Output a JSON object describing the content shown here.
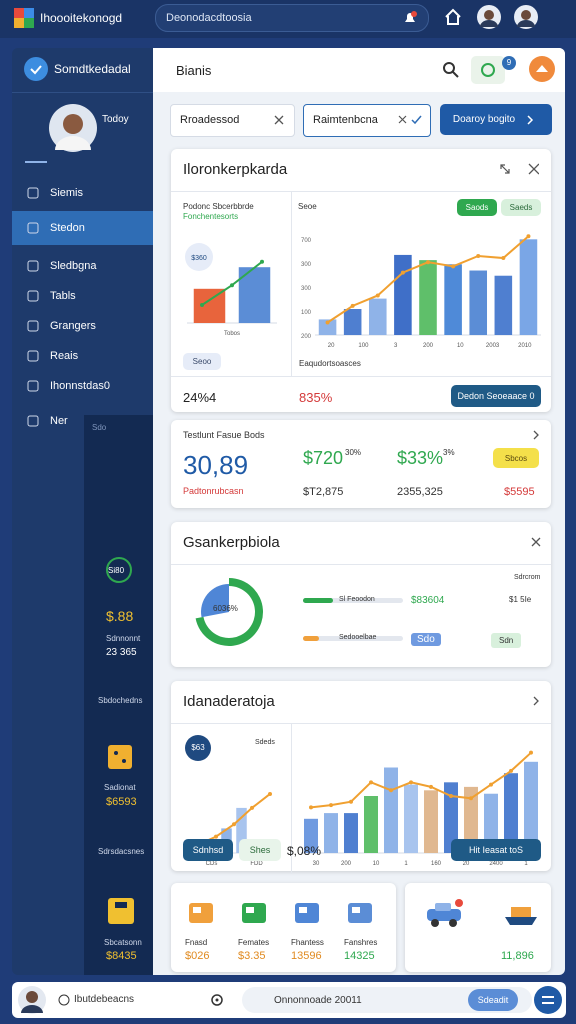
{
  "top_bar": {
    "app_title": "Ihoooitekonogd",
    "search": "Deonodacdtoosia"
  },
  "sidebar": {
    "title": "Somdtkedadal",
    "user_name": "Todoy",
    "nav": [
      "Siemis",
      "Stedon",
      "Sledbgna",
      "Tabls",
      "Grangers",
      "Reais",
      "Ihonnstdas0",
      "Ner"
    ],
    "panel": {
      "header": "Sdo",
      "ring_label": "Si80",
      "value1": "$.88",
      "label1": "Sdnnonnt",
      "value2": "23 365",
      "label2": "Sbdochedns",
      "label3": "Sadionat",
      "value3": "$6593",
      "label4": "Sdrsdacsnes",
      "label5": "Sbcatsonn",
      "value5": "$8435"
    }
  },
  "main": {
    "header": "Bianis",
    "badge": "9",
    "filters": [
      "Rroadessod",
      "Raimtenbcna"
    ],
    "filter_action": "Doaroy bogito",
    "card1": {
      "title": "Iloronkerpkarda",
      "chart_title": "Podonc Sbcerbbrde",
      "chart_subtitle": "Fonchentesorts",
      "small_chart": {
        "badge": "$360",
        "x_labels": [
          "Tobos"
        ],
        "button": "Seoo",
        "bars": [
          38,
          62
        ],
        "bar_colors": [
          "#e8643c",
          "#5b8dd6"
        ],
        "line": [
          20,
          42,
          68
        ],
        "line_color": "#2fa84f",
        "ylim": [
          0,
          100
        ]
      },
      "main_chart": {
        "legend": [
          {
            "name": "Saods",
            "color": "#2fa84f"
          },
          {
            "name": "Saeds",
            "color": "#d8f0dc"
          }
        ],
        "corner": "Seoe",
        "y_labels": [
          "700",
          "300",
          "300",
          "100",
          "200"
        ],
        "x_labels": [
          "20",
          "100",
          "3",
          "200",
          "10",
          "2003",
          "2010"
        ],
        "caption": "Eaqudortsoasces",
        "bars": [
          15,
          25,
          35,
          77,
          72,
          68,
          62,
          57,
          92
        ],
        "bar_colors": [
          "#8fb3e8",
          "#4f7fd0",
          "#8fb3e8",
          "#3f6fc8",
          "#5fbf6a",
          "#4f8ad8",
          "#5b8dd6",
          "#4f7fd0",
          "#7aa6e6"
        ],
        "line": [
          12,
          28,
          38,
          60,
          70,
          66,
          76,
          74,
          95
        ],
        "line_color": "#f0a030",
        "ylim": [
          0,
          100
        ]
      },
      "stat1": "24%4",
      "stat2": "835%",
      "button": "Dedon Seoeaace 0"
    },
    "card2": {
      "title": "Testlunt Fasue Bods",
      "big_value": "30,89",
      "big_label": "Padtonrubcasn",
      "v2": "$720",
      "v2_pct": "30%",
      "v2_sub": "$T2,875",
      "v3": "$33%",
      "v3_pct": "3%",
      "v3_sub": "2355,325",
      "badge": "Sbcos",
      "v4": "$5595"
    },
    "card3": {
      "title": "Gsankerpbiola",
      "donut_label": "6036%",
      "donut": {
        "values": [
          72,
          28
        ],
        "colors": [
          "#2fa84f",
          "#4f86d6"
        ]
      },
      "corner": "Sdrcrom",
      "rows": [
        {
          "label": "Sl Feoodon",
          "value": "$83604",
          "right": "$1 5Ie",
          "fill": 30,
          "color": "#2fa84f"
        },
        {
          "label": "Sedooelbae",
          "value": "Sdo",
          "right": "Sdn",
          "fill": 16,
          "color": "#f0a03c"
        }
      ]
    },
    "card4": {
      "title": "Idanaderatoja",
      "small_chart": {
        "badge": "$63",
        "corner": "Sdeds",
        "x_labels": [
          "CDs",
          "FDD"
        ],
        "bars": [
          12,
          12,
          30,
          55,
          12,
          12
        ],
        "bar_colors": [
          "#4f7fd0",
          "#3f6fc8",
          "#8fb3e8",
          "#a8c4ee",
          "#f0a070",
          "#8fb3e8"
        ],
        "line": [
          10,
          20,
          35,
          55,
          72
        ],
        "line_color": "#f0a030",
        "ylim": [
          0,
          100
        ]
      },
      "main_chart": {
        "x_labels": [
          "30",
          "200",
          "10",
          "1",
          "160",
          "20",
          "2400",
          "1"
        ],
        "bars": [
          30,
          35,
          35,
          50,
          75,
          60,
          55,
          62,
          58,
          52,
          70,
          80
        ],
        "bar_colors": [
          "#6f9ae0",
          "#8fb3e8",
          "#4f7fd0",
          "#5fbf6a",
          "#8fb3e8",
          "#a8c4ee",
          "#e0b890",
          "#4f7fd0",
          "#e0b890",
          "#8fb3e8",
          "#4f7fd0",
          "#8fb3e8"
        ],
        "line": [
          40,
          42,
          45,
          62,
          55,
          62,
          58,
          50,
          48,
          60,
          72,
          88
        ],
        "line_color": "#f0a030",
        "ylim": [
          0,
          100
        ]
      },
      "chip1": "Sdnhsd",
      "chip2": "Shes",
      "stat": "$,08%",
      "button": "Hit Ieasat toS"
    },
    "card5": {
      "items": [
        {
          "label": "Fnasd",
          "value": "$026"
        },
        {
          "label": "Femates",
          "value": "$3.35"
        },
        {
          "label": "Fhantess",
          "value": "13596"
        },
        {
          "label": "Fanshres",
          "value": "14325"
        }
      ],
      "right_value": "11,896"
    }
  },
  "bottom_bar": {
    "left": "Ibutdebeacns",
    "search": "Onnonnoade 20011",
    "button": "Sdeadit"
  }
}
